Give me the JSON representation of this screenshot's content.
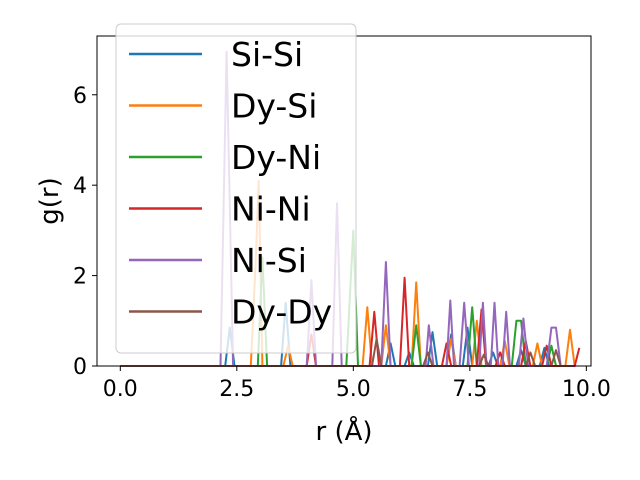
{
  "chart_data": {
    "type": "line",
    "title": "",
    "xlabel": "r (Å)",
    "ylabel": "g(r)",
    "xlim": [
      -0.5,
      10.1
    ],
    "ylim": [
      0,
      7.3
    ],
    "xticks": [
      0.0,
      2.5,
      5.0,
      7.5,
      10.0
    ],
    "xtick_labels": [
      "0.0",
      "2.5",
      "5.0",
      "7.5",
      "10.0"
    ],
    "yticks": [
      0,
      2,
      4,
      6
    ],
    "ytick_labels": [
      "0",
      "2",
      "4",
      "6"
    ],
    "grid": false,
    "legend_position": "upper-left",
    "series": [
      {
        "name": "Si-Si",
        "color": "#1f77b4",
        "points": [
          [
            0,
            0
          ],
          [
            2.25,
            0
          ],
          [
            2.35,
            0.85
          ],
          [
            2.45,
            0
          ],
          [
            3.45,
            0
          ],
          [
            3.55,
            1.4
          ],
          [
            3.65,
            0
          ],
          [
            5.7,
            0
          ],
          [
            5.8,
            0.5
          ],
          [
            5.9,
            0
          ],
          [
            6.1,
            0
          ],
          [
            6.2,
            0.3
          ],
          [
            6.3,
            0
          ],
          [
            6.6,
            0
          ],
          [
            6.7,
            0.75
          ],
          [
            6.8,
            0
          ],
          [
            7.0,
            0
          ],
          [
            7.1,
            0.7
          ],
          [
            7.2,
            0
          ],
          [
            7.35,
            0
          ],
          [
            7.45,
            0.85
          ],
          [
            7.55,
            0
          ],
          [
            7.9,
            0
          ],
          [
            8.0,
            0.3
          ],
          [
            8.1,
            0
          ],
          [
            8.5,
            0
          ],
          [
            8.6,
            0.35
          ],
          [
            8.7,
            0
          ],
          [
            9.0,
            0
          ],
          [
            9.1,
            0.4
          ],
          [
            9.2,
            0
          ],
          [
            9.7,
            0
          ]
        ]
      },
      {
        "name": "Dy-Si",
        "color": "#ff7f0e",
        "points": [
          [
            0,
            0
          ],
          [
            2.8,
            0
          ],
          [
            2.9,
            2.2
          ],
          [
            2.97,
            4.1
          ],
          [
            3.05,
            0
          ],
          [
            3.5,
            0
          ],
          [
            3.6,
            0.45
          ],
          [
            3.7,
            0
          ],
          [
            5.2,
            0
          ],
          [
            5.3,
            1.3
          ],
          [
            5.4,
            0
          ],
          [
            5.6,
            0
          ],
          [
            5.7,
            0.9
          ],
          [
            5.8,
            0
          ],
          [
            6.25,
            0
          ],
          [
            6.35,
            1.85
          ],
          [
            6.45,
            0
          ],
          [
            7.0,
            0
          ],
          [
            7.1,
            0.6
          ],
          [
            7.2,
            0
          ],
          [
            7.55,
            0
          ],
          [
            7.65,
            1.0
          ],
          [
            7.75,
            0
          ],
          [
            8.15,
            0
          ],
          [
            8.25,
            0.55
          ],
          [
            8.35,
            0
          ],
          [
            8.85,
            0
          ],
          [
            8.95,
            0.5
          ],
          [
            9.05,
            0
          ],
          [
            9.55,
            0
          ],
          [
            9.65,
            0.8
          ],
          [
            9.75,
            0
          ]
        ]
      },
      {
        "name": "Dy-Ni",
        "color": "#2ca02c",
        "points": [
          [
            0,
            0
          ],
          [
            2.95,
            0
          ],
          [
            3.05,
            2.4
          ],
          [
            3.15,
            0
          ],
          [
            4.85,
            0
          ],
          [
            5.0,
            3.0
          ],
          [
            5.1,
            0
          ],
          [
            6.25,
            0
          ],
          [
            6.35,
            0.9
          ],
          [
            6.45,
            0
          ],
          [
            7.45,
            0
          ],
          [
            7.55,
            1.3
          ],
          [
            7.65,
            0
          ],
          [
            8.4,
            0
          ],
          [
            8.5,
            1.0
          ],
          [
            8.6,
            1.0
          ],
          [
            8.7,
            0
          ],
          [
            9.15,
            0
          ],
          [
            9.25,
            0.45
          ],
          [
            9.35,
            0
          ],
          [
            9.65,
            0
          ]
        ]
      },
      {
        "name": "Ni-Ni",
        "color": "#d62728",
        "points": [
          [
            0,
            0
          ],
          [
            4.0,
            0
          ],
          [
            4.1,
            0.7
          ],
          [
            4.2,
            0
          ],
          [
            5.35,
            0
          ],
          [
            5.45,
            1.2
          ],
          [
            5.55,
            0
          ],
          [
            6.0,
            0
          ],
          [
            6.1,
            1.95
          ],
          [
            6.2,
            0
          ],
          [
            6.9,
            0
          ],
          [
            7.0,
            0.5
          ],
          [
            7.1,
            0
          ],
          [
            7.65,
            0
          ],
          [
            7.75,
            1.25
          ],
          [
            7.85,
            0
          ],
          [
            8.05,
            0
          ],
          [
            8.15,
            0.3
          ],
          [
            8.25,
            0
          ],
          [
            8.6,
            0
          ],
          [
            8.7,
            0.55
          ],
          [
            8.8,
            0
          ],
          [
            9.05,
            0
          ],
          [
            9.15,
            0.45
          ],
          [
            9.25,
            0
          ],
          [
            9.75,
            0
          ],
          [
            9.85,
            0.4
          ]
        ]
      },
      {
        "name": "Ni-Si",
        "color": "#9467bd",
        "points": [
          [
            0,
            0
          ],
          [
            2.15,
            0
          ],
          [
            2.28,
            6.95
          ],
          [
            2.42,
            0
          ],
          [
            4.0,
            0
          ],
          [
            4.1,
            1.9
          ],
          [
            4.2,
            0
          ],
          [
            4.55,
            0
          ],
          [
            4.65,
            3.6
          ],
          [
            4.75,
            0
          ],
          [
            5.6,
            0
          ],
          [
            5.7,
            2.3
          ],
          [
            5.8,
            0
          ],
          [
            6.55,
            0
          ],
          [
            6.62,
            0.9
          ],
          [
            6.72,
            0
          ],
          [
            7.0,
            0
          ],
          [
            7.08,
            1.45
          ],
          [
            7.16,
            0
          ],
          [
            7.28,
            0
          ],
          [
            7.38,
            1.4
          ],
          [
            7.48,
            0
          ],
          [
            7.7,
            0
          ],
          [
            7.78,
            1.4
          ],
          [
            7.86,
            0
          ],
          [
            7.95,
            0
          ],
          [
            8.03,
            1.4
          ],
          [
            8.11,
            0
          ],
          [
            8.2,
            0
          ],
          [
            8.28,
            1.2
          ],
          [
            8.36,
            0
          ],
          [
            8.55,
            0
          ],
          [
            8.65,
            1.05
          ],
          [
            8.75,
            0
          ],
          [
            9.15,
            0
          ],
          [
            9.25,
            0.85
          ],
          [
            9.35,
            0.85
          ],
          [
            9.45,
            0
          ]
        ]
      },
      {
        "name": "Dy-Dy",
        "color": "#8c564b",
        "points": [
          [
            0,
            0
          ],
          [
            5.4,
            0
          ],
          [
            5.5,
            0.6
          ],
          [
            5.6,
            0
          ],
          [
            6.5,
            0
          ],
          [
            6.6,
            0.3
          ],
          [
            6.7,
            0
          ],
          [
            7.7,
            0
          ],
          [
            7.8,
            0.25
          ],
          [
            7.9,
            0
          ],
          [
            8.7,
            0
          ],
          [
            8.8,
            0.3
          ],
          [
            8.9,
            0
          ],
          [
            9.25,
            0
          ],
          [
            9.35,
            0.35
          ],
          [
            9.45,
            0
          ],
          [
            9.7,
            0
          ]
        ]
      }
    ]
  }
}
